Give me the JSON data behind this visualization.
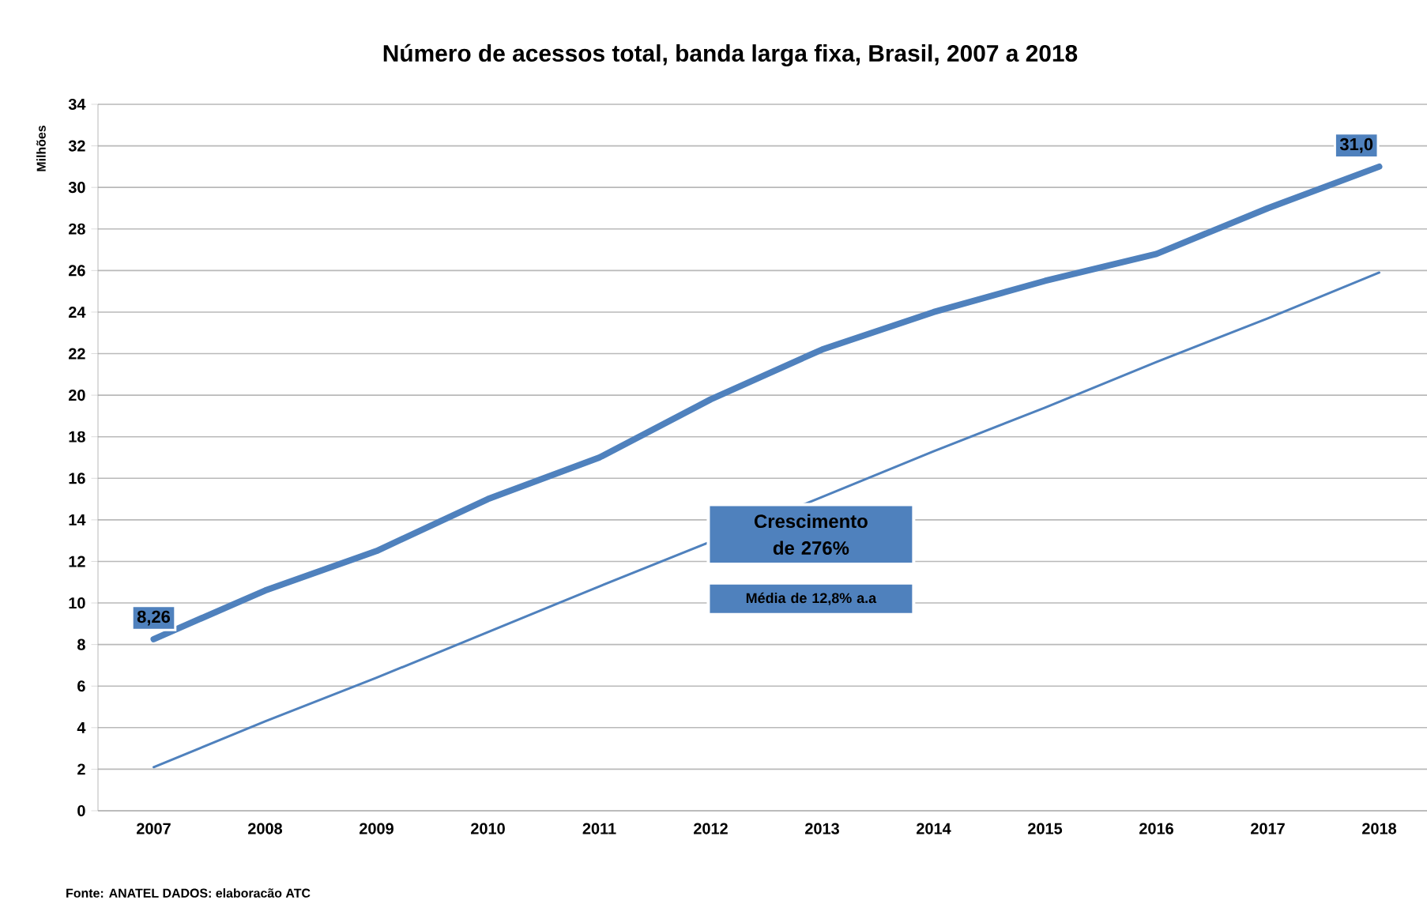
{
  "chart_data": {
    "type": "line",
    "title": "Número de acessos total, banda larga fixa, Brasil, 2007 a 2018",
    "ylabel": "Milhões",
    "categories": [
      "2007",
      "2008",
      "2009",
      "2010",
      "2011",
      "2012",
      "2013",
      "2014",
      "2015",
      "2016",
      "2017",
      "2018"
    ],
    "series": [
      {
        "color": "#4f81bd",
        "values": [
          8.26,
          10.6,
          12.5,
          15.0,
          17.0,
          19.8,
          22.2,
          24.0,
          25.5,
          26.8,
          29.0,
          31.0
        ],
        "value_labels": [
          "8,26",
          null,
          null,
          null,
          null,
          null,
          null,
          null,
          null,
          null,
          null,
          "31,0"
        ]
      },
      {
        "color": "#4f81bd",
        "values": [
          2.1,
          4.3,
          6.4,
          8.6,
          10.8,
          null,
          15.1,
          17.3,
          19.4,
          21.6,
          23.7,
          25.9
        ]
      }
    ],
    "ylim": [
      0,
      34
    ],
    "yticks": [
      0,
      2,
      4,
      6,
      8,
      10,
      12,
      14,
      16,
      18,
      20,
      22,
      24,
      26,
      28,
      30,
      32,
      34
    ],
    "grid": "y",
    "marker": "none",
    "line_style": "solid",
    "annotations": [
      "Crescimento de 276%",
      "Média de 12,8% a.a",
      "Fonte: ANATEL DADOS: elaboracão ATC"
    ]
  }
}
